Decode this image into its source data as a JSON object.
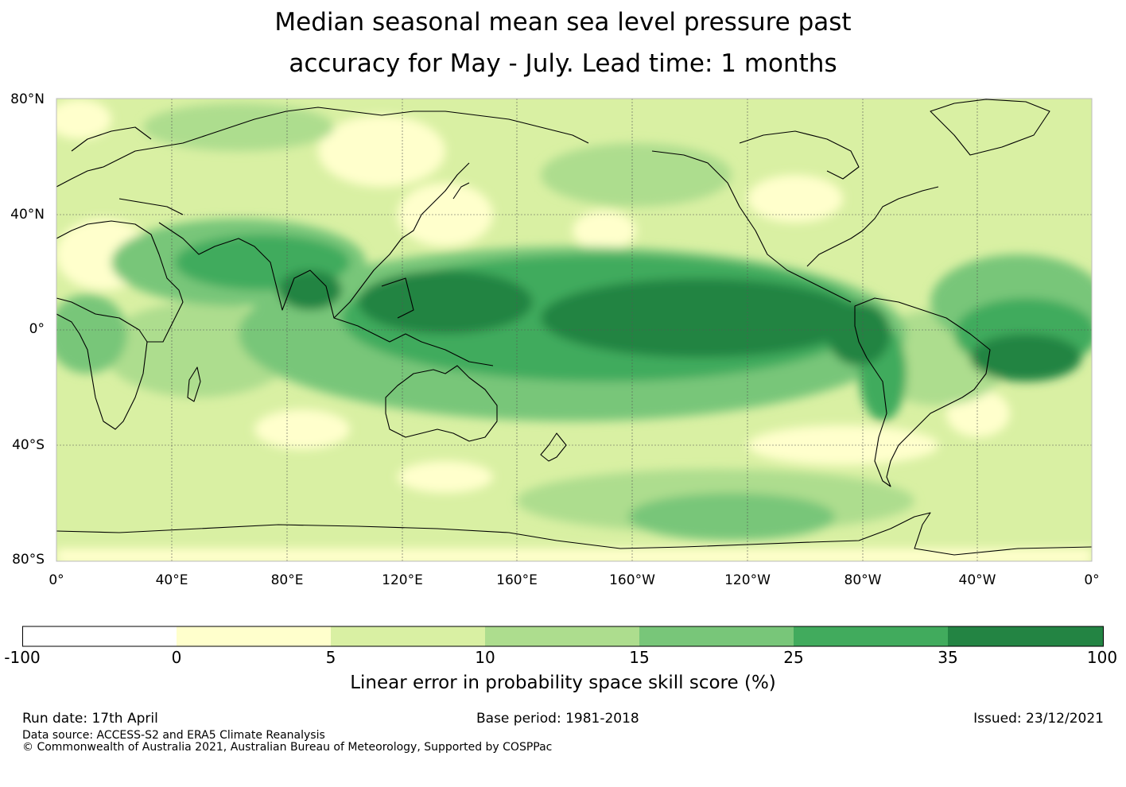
{
  "title": {
    "line1": "Median seasonal mean sea level pressure past",
    "line2": "accuracy for May - July. Lead time: 1 months"
  },
  "map": {
    "lat_labels": [
      "80°N",
      "40°N",
      "0°",
      "40°S",
      "80°S"
    ],
    "lon_labels": [
      "0°",
      "40°E",
      "80°E",
      "120°E",
      "160°E",
      "160°W",
      "120°W",
      "80°W",
      "40°W",
      "0°"
    ],
    "land_outline_color": "#000000"
  },
  "colorbar": {
    "ticks": [
      "-100",
      "0",
      "5",
      "10",
      "15",
      "25",
      "35",
      "100"
    ],
    "colors": [
      "#ffffff",
      "#ffffcc",
      "#d9f0a3",
      "#addd8e",
      "#78c679",
      "#41ab5d",
      "#238443"
    ],
    "label": "Linear error in probability space skill score (%)"
  },
  "footer": {
    "run_date": "Run date: 17th April",
    "base_period": "Base period: 1981-2018",
    "issued": "Issued: 23/12/2021",
    "data_source": "Data source: ACCESS-S2 and ERA5 Climate Reanalysis",
    "copyright": "© Commonwealth of Australia 2021, Australian Bureau of Meteorology, Supported by COSPPac"
  }
}
